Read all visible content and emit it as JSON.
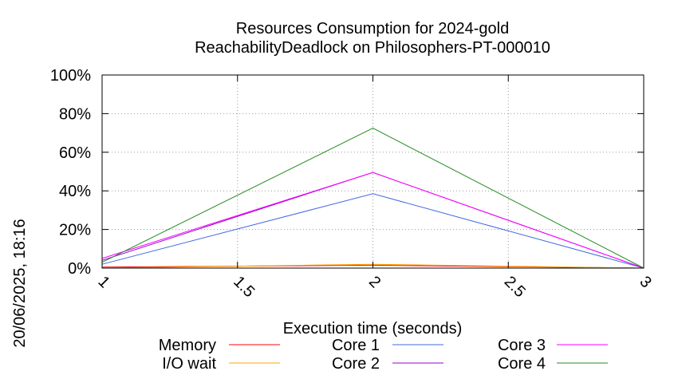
{
  "chart_data": {
    "type": "line",
    "title": "Resources Consumption for 2024-gold",
    "subtitle": "ReachabilityDeadlock on Philosophers-PT-000010",
    "xlabel": "Execution time (seconds)",
    "ylabel": "",
    "timestamp": "20/06/2025, 18:16",
    "xlim": [
      1,
      3
    ],
    "ylim": [
      0,
      100
    ],
    "x_ticks": [
      {
        "value": 1,
        "label": "1"
      },
      {
        "value": 1.5,
        "label": "1.5"
      },
      {
        "value": 2,
        "label": "2"
      },
      {
        "value": 2.5,
        "label": "2.5"
      },
      {
        "value": 3,
        "label": "3"
      }
    ],
    "y_ticks": [
      {
        "value": 0,
        "label": "0%"
      },
      {
        "value": 20,
        "label": "20%"
      },
      {
        "value": 40,
        "label": "40%"
      },
      {
        "value": 60,
        "label": "60%"
      },
      {
        "value": 80,
        "label": "80%"
      },
      {
        "value": 100,
        "label": "100%"
      }
    ],
    "grid": true,
    "legend_position": "bottom",
    "series": [
      {
        "name": "Memory",
        "color": "#ff0000",
        "x": [
          1,
          2,
          3
        ],
        "y": [
          0.5,
          1.5,
          0
        ]
      },
      {
        "name": "I/O wait",
        "color": "#ffa500",
        "x": [
          1,
          2,
          3
        ],
        "y": [
          0,
          2,
          0
        ]
      },
      {
        "name": "Core 1",
        "color": "#4169e1",
        "x": [
          1,
          2,
          3
        ],
        "y": [
          2,
          38.5,
          0
        ]
      },
      {
        "name": "Core 2",
        "color": "#9400d3",
        "x": [
          1,
          2,
          3
        ],
        "y": [
          4,
          49.5,
          0
        ]
      },
      {
        "name": "Core 3",
        "color": "#ff00ff",
        "x": [
          1,
          2,
          3
        ],
        "y": [
          5,
          49.5,
          0
        ]
      },
      {
        "name": "Core 4",
        "color": "#228b22",
        "x": [
          1,
          2,
          3
        ],
        "y": [
          3,
          72.5,
          0
        ]
      }
    ]
  }
}
